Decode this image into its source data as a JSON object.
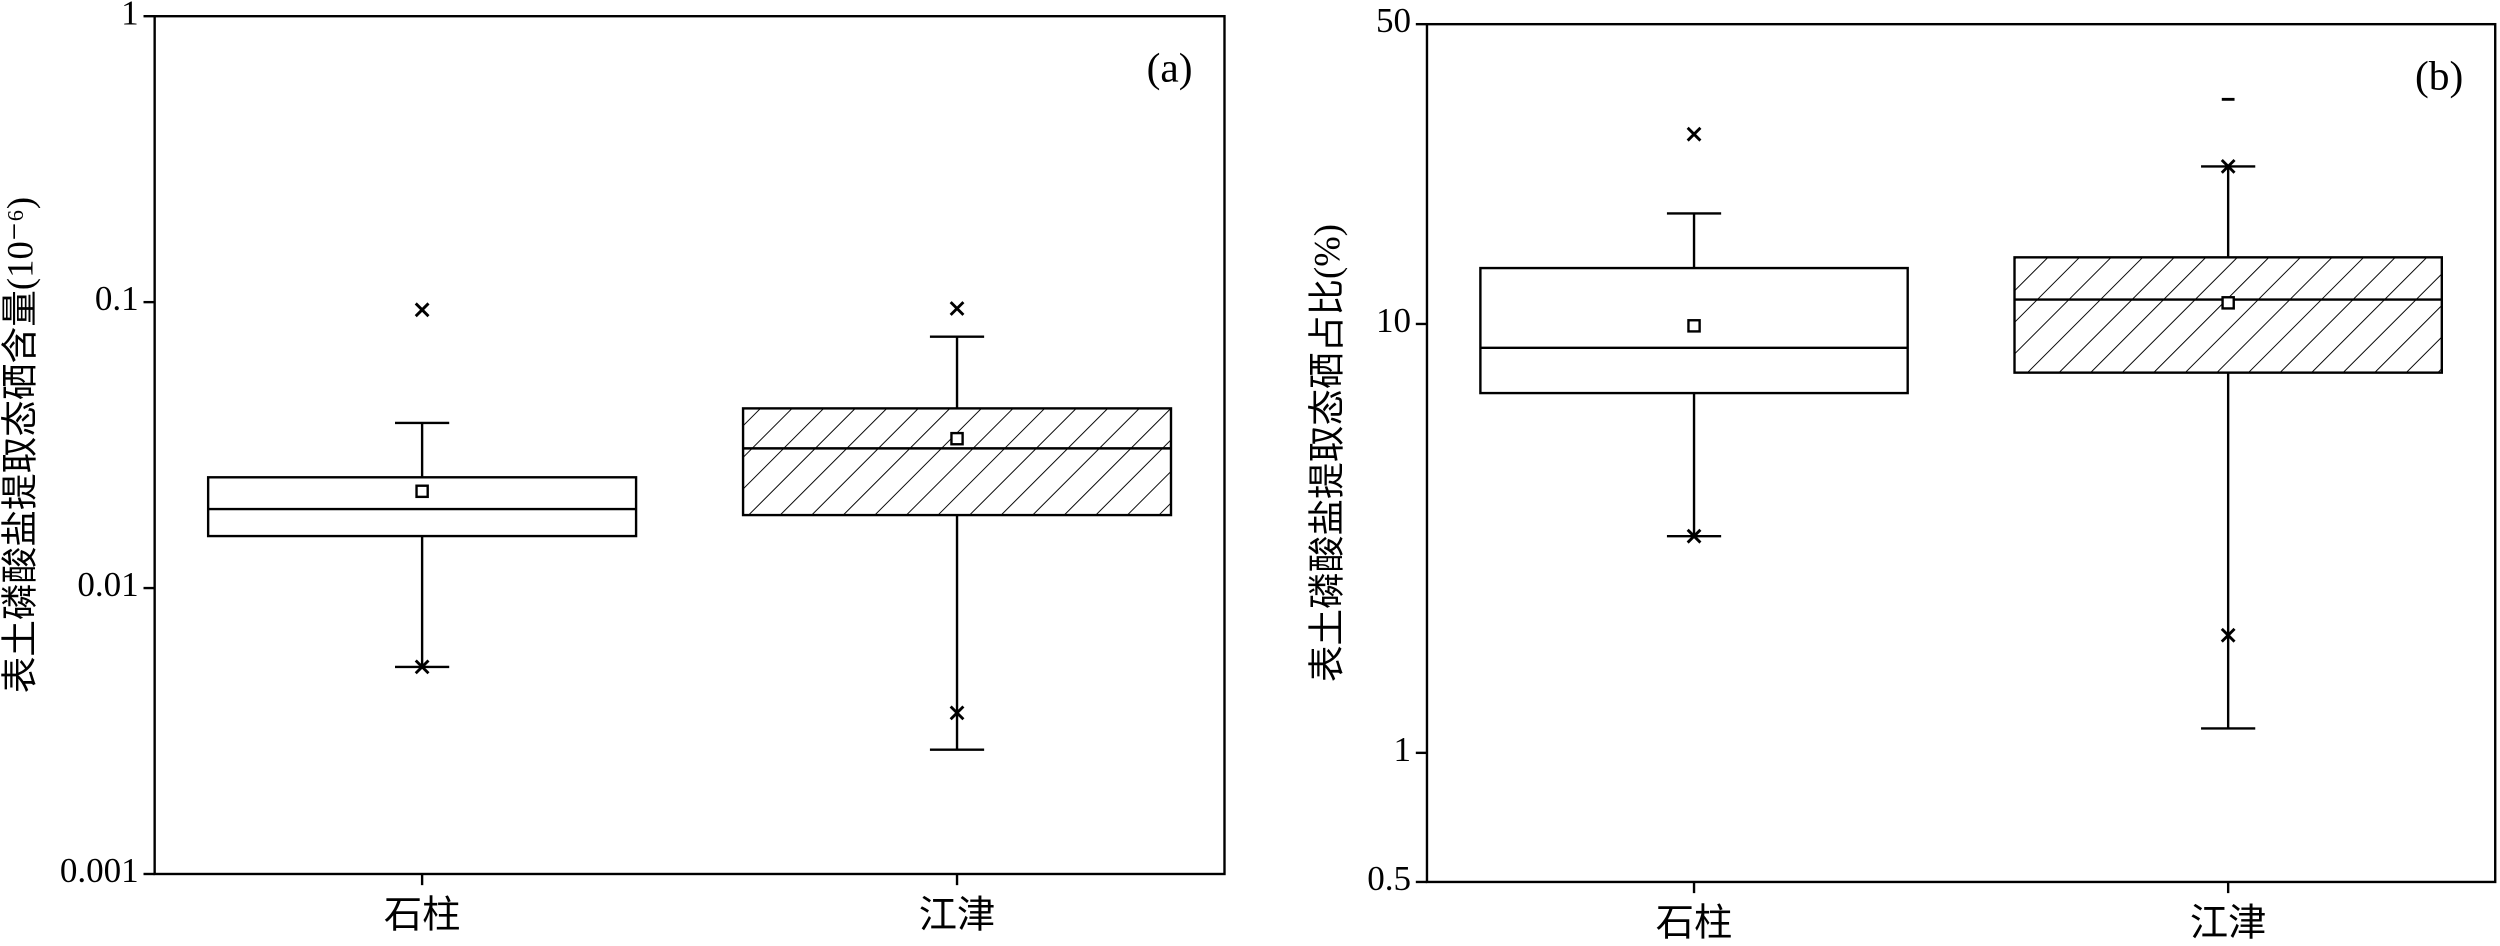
{
  "chart_data": [
    {
      "type": "box",
      "ylabel": "表土磷酸盐提取态硒含量(10⁻⁶)",
      "annotation": "(a)",
      "log_scale": true,
      "ylim": [
        0.001,
        1
      ],
      "yticks": [
        0.001,
        0.01,
        0.1,
        1
      ],
      "categories": [
        "石柱",
        "江津"
      ],
      "series": [
        {
          "hatch": false,
          "whisker_low": 0.0053,
          "q1": 0.0152,
          "median": 0.0189,
          "q3": 0.0244,
          "whisker_high": 0.0378,
          "mean": 0.0218,
          "crosses": [
            0.094,
            0.0053
          ],
          "dashes": []
        },
        {
          "hatch": true,
          "whisker_low": 0.00272,
          "q1": 0.018,
          "median": 0.0308,
          "q3": 0.0425,
          "whisker_high": 0.0757,
          "mean": 0.0333,
          "crosses": [
            0.095,
            0.00366
          ],
          "dashes": []
        }
      ]
    },
    {
      "type": "box",
      "ylabel": "表土磷酸盐提取态硒占比(%)",
      "annotation": "(b)",
      "log_scale": true,
      "ylim": [
        0.5,
        50
      ],
      "yticks": [
        0.5,
        1,
        10,
        50
      ],
      "categories": [
        "石柱",
        "江津"
      ],
      "series": [
        {
          "hatch": false,
          "whisker_low": 3.2,
          "q1": 6.9,
          "median": 8.8,
          "q3": 13.5,
          "whisker_high": 18.1,
          "mean": 9.9,
          "crosses": [
            27.7,
            3.2
          ],
          "dashes": []
        },
        {
          "hatch": true,
          "whisker_low": 1.14,
          "q1": 7.7,
          "median": 11.4,
          "q3": 14.3,
          "whisker_high": 23.3,
          "mean": 11.2,
          "crosses": [
            23.3,
            1.88
          ],
          "dashes": [
            33.4
          ]
        }
      ]
    }
  ]
}
